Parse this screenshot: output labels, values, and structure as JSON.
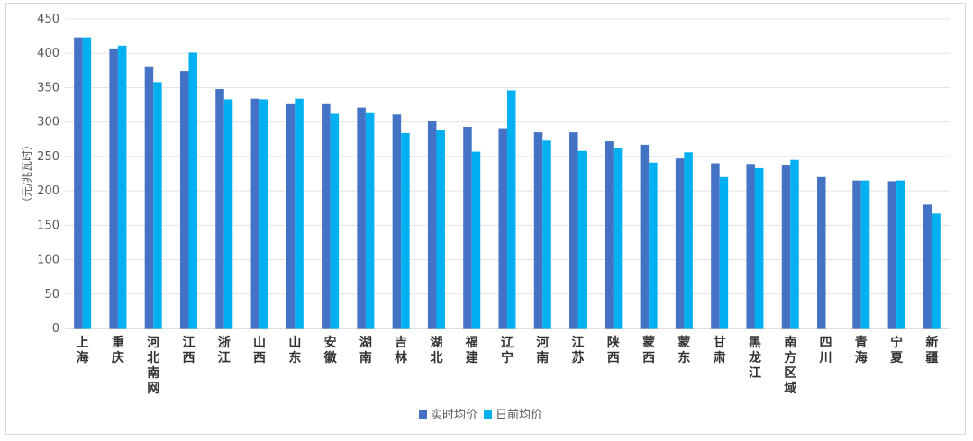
{
  "chart_data": {
    "type": "bar",
    "title": "",
    "xlabel": "",
    "ylabel": "（元/兆瓦时）",
    "ylim": [
      0,
      450
    ],
    "yticks": [
      0,
      50,
      100,
      150,
      200,
      250,
      300,
      350,
      400,
      450
    ],
    "grid": true,
    "legend_position": "bottom",
    "categories": [
      "上海",
      "重庆",
      "河北南网",
      "江西",
      "浙江",
      "山西",
      "山东",
      "安徽",
      "湖南",
      "吉林",
      "湖北",
      "福建",
      "辽宁",
      "河南",
      "江苏",
      "陕西",
      "蒙西",
      "蒙东",
      "甘肃",
      "黑龙江",
      "南方区域",
      "四川",
      "青海",
      "宁夏",
      "新疆"
    ],
    "series": [
      {
        "name": "实时均价",
        "color": "#4472C4",
        "values": [
          423,
          407,
          381,
          374,
          348,
          334,
          326,
          326,
          321,
          311,
          302,
          293,
          291,
          285,
          285,
          272,
          267,
          247,
          240,
          239,
          238,
          220,
          215,
          214,
          180
        ]
      },
      {
        "name": "日前均价",
        "color": "#00B0F0",
        "values": [
          423,
          411,
          358,
          401,
          333,
          333,
          334,
          312,
          313,
          284,
          288,
          257,
          346,
          273,
          258,
          262,
          241,
          256,
          220,
          233,
          245,
          null,
          215,
          215,
          167
        ]
      }
    ]
  }
}
